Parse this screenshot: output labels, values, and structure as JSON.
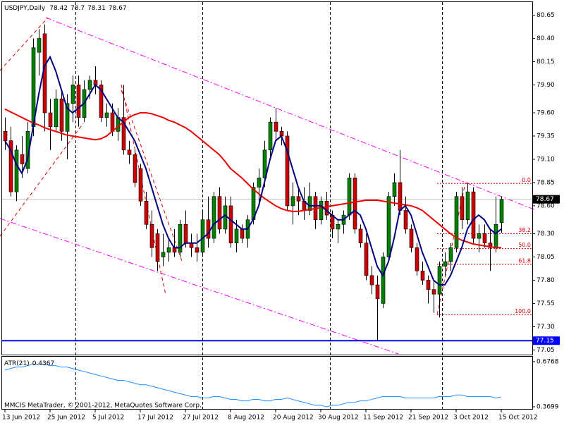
{
  "chart_data": [
    {
      "type": "candlestick",
      "title": "USDJPY,Daily",
      "categories": [
        "13 Jun 2012",
        null,
        null,
        null,
        null,
        null,
        null,
        null,
        "25 Jun 2012",
        null,
        null,
        null,
        null,
        null,
        null,
        null,
        "5 Jul 2012",
        null,
        null,
        null,
        null,
        null,
        null,
        null,
        "17 Jul 2012",
        null,
        null,
        null,
        null,
        null,
        null,
        null,
        "27 Jul 2012",
        null,
        null,
        null,
        null,
        null,
        null,
        null,
        "8 Aug 2012",
        null,
        null,
        null,
        null,
        null,
        null,
        null,
        "20 Aug 2012",
        null,
        null,
        null,
        null,
        null,
        null,
        null,
        "30 Aug 2012",
        null,
        null,
        null,
        null,
        null,
        null,
        null,
        "11 Sep 2012",
        null,
        null,
        null,
        null,
        null,
        null,
        null,
        "21 Sep 2012",
        null,
        null,
        null,
        null,
        null,
        null,
        null,
        "3 Oct 2012",
        null,
        null,
        null,
        null,
        null,
        null,
        null,
        "15 Oct 2012"
      ],
      "open": [
        79.4,
        79.3,
        78.75,
        79.15,
        79.0,
        79.45,
        80.25,
        80.45,
        79.6,
        79.45,
        79.75,
        79.4,
        79.7,
        79.9,
        79.55,
        79.85,
        79.95,
        79.9,
        79.55,
        79.6,
        79.4,
        79.55,
        79.2,
        79.15,
        79.0,
        78.65,
        78.4,
        78.3,
        78.05,
        78.1,
        78.15,
        78.1,
        78.4,
        78.2,
        78.15,
        78.1,
        78.45,
        78.25,
        78.7,
        78.35,
        78.6,
        78.2,
        78.35,
        78.25,
        78.45,
        78.8,
        78.9,
        79.2,
        79.5,
        79.4,
        79.35,
        78.6,
        78.7,
        78.65,
        78.55,
        78.7,
        78.45,
        78.65,
        78.5,
        78.35,
        78.4,
        78.5,
        78.9,
        78.35,
        78.2,
        77.85,
        77.75,
        77.55,
        78.05,
        78.7,
        78.85,
        78.55,
        78.35,
        78.15,
        77.9,
        77.8,
        77.7,
        77.65,
        77.95,
        78.0,
        78.15,
        78.7,
        78.45,
        78.75,
        78.25,
        78.3,
        78.2,
        78.15,
        78.42
      ],
      "high": [
        79.55,
        79.45,
        79.25,
        79.35,
        79.5,
        80.4,
        80.5,
        80.55,
        79.75,
        79.85,
        79.85,
        79.8,
        80.0,
        80.0,
        79.95,
        80.0,
        80.1,
        79.95,
        79.7,
        79.7,
        79.65,
        79.9,
        79.3,
        79.2,
        79.05,
        78.75,
        78.55,
        78.35,
        78.3,
        78.25,
        78.35,
        78.45,
        78.55,
        78.3,
        78.3,
        78.55,
        78.7,
        78.75,
        78.8,
        78.7,
        78.7,
        78.45,
        78.4,
        78.5,
        78.85,
        79.0,
        79.3,
        79.55,
        79.65,
        79.45,
        79.4,
        78.85,
        78.8,
        78.8,
        78.85,
        78.75,
        78.7,
        78.75,
        78.55,
        78.45,
        78.55,
        78.95,
        78.95,
        78.4,
        78.3,
        77.95,
        77.85,
        78.1,
        78.75,
        78.95,
        79.2,
        78.7,
        78.4,
        78.2,
        78.0,
        77.85,
        77.8,
        78.0,
        78.1,
        78.2,
        78.75,
        78.8,
        78.85,
        78.8,
        78.4,
        78.4,
        78.35,
        78.7,
        78.7
      ],
      "low": [
        79.2,
        78.7,
        78.65,
        78.9,
        78.95,
        79.35,
        80.0,
        79.4,
        79.2,
        79.4,
        79.3,
        79.1,
        79.5,
        79.45,
        79.5,
        79.75,
        79.8,
        79.5,
        79.45,
        79.35,
        79.3,
        79.15,
        79.05,
        78.8,
        78.6,
        78.35,
        78.05,
        77.9,
        77.95,
        78.0,
        78.05,
        78.05,
        78.15,
        78.05,
        78.0,
        78.05,
        78.15,
        78.2,
        78.3,
        78.3,
        78.15,
        78.1,
        78.2,
        78.15,
        78.4,
        78.6,
        78.8,
        79.1,
        79.3,
        79.25,
        78.55,
        78.4,
        78.5,
        78.45,
        78.5,
        78.35,
        78.4,
        78.45,
        78.25,
        78.2,
        78.3,
        78.45,
        78.3,
        78.15,
        77.8,
        77.65,
        77.15,
        77.5,
        78.0,
        78.6,
        78.5,
        78.3,
        78.1,
        77.85,
        77.75,
        77.55,
        77.45,
        77.4,
        77.85,
        77.9,
        78.1,
        78.35,
        78.4,
        78.2,
        78.1,
        78.15,
        77.9,
        78.1,
        78.31
      ],
      "close": [
        79.3,
        78.75,
        79.2,
        79.05,
        79.4,
        80.3,
        80.4,
        79.6,
        79.45,
        79.75,
        79.4,
        79.7,
        79.9,
        79.55,
        79.85,
        79.95,
        79.9,
        79.55,
        79.6,
        79.4,
        79.55,
        79.2,
        79.15,
        78.85,
        78.65,
        78.4,
        78.15,
        78.0,
        78.1,
        78.15,
        78.1,
        78.4,
        78.2,
        78.15,
        78.1,
        78.45,
        78.25,
        78.7,
        78.35,
        78.6,
        78.2,
        78.35,
        78.25,
        78.45,
        78.8,
        78.9,
        79.2,
        79.5,
        79.4,
        79.35,
        78.6,
        78.7,
        78.65,
        78.55,
        78.7,
        78.45,
        78.65,
        78.5,
        78.35,
        78.4,
        78.5,
        78.9,
        78.35,
        78.2,
        77.85,
        77.75,
        77.6,
        78.05,
        78.7,
        78.85,
        78.55,
        78.35,
        78.15,
        77.9,
        77.8,
        77.7,
        77.65,
        77.95,
        78.0,
        78.15,
        78.7,
        78.45,
        78.75,
        78.25,
        78.3,
        78.2,
        78.15,
        78.4,
        78.67
      ],
      "up_color": "#008000",
      "down_color": "#cc0000",
      "lines": [
        {
          "color": "#ee0000",
          "values": [
            79.64,
            79.61,
            79.58,
            79.55,
            79.52,
            79.49,
            79.47,
            79.44,
            79.42,
            79.4,
            79.38,
            79.36,
            79.35,
            79.34,
            79.33,
            79.32,
            79.31,
            79.32,
            79.35,
            79.4,
            79.45,
            79.5,
            79.55,
            79.58,
            79.6,
            79.6,
            79.59,
            79.57,
            79.55,
            79.52,
            79.5,
            79.47,
            79.44,
            79.4,
            79.35,
            79.3,
            79.25,
            79.2,
            79.15,
            79.08,
            79.0,
            78.95,
            78.9,
            78.84,
            78.78,
            78.73,
            78.68,
            78.64,
            78.6,
            78.57,
            78.55,
            78.54,
            78.54,
            78.55,
            78.56,
            78.57,
            78.58,
            78.59,
            78.6,
            78.61,
            78.62,
            78.63,
            78.64,
            78.65,
            78.66,
            78.66,
            78.66,
            78.65,
            78.64,
            78.63,
            78.62,
            78.61,
            78.6,
            78.58,
            78.55,
            78.5,
            78.45,
            78.4,
            78.35,
            78.3,
            78.26,
            78.23,
            78.21,
            78.19,
            78.18,
            78.17,
            78.16,
            78.15,
            78.15
          ]
        },
        {
          "color": "#000080",
          "values": [
            79.3,
            79.2,
            79.05,
            78.95,
            79.1,
            79.45,
            79.8,
            80.1,
            80.2,
            80.05,
            79.85,
            79.65,
            79.6,
            79.65,
            79.7,
            79.8,
            79.9,
            79.85,
            79.75,
            79.65,
            79.55,
            79.5,
            79.4,
            79.3,
            79.15,
            79.0,
            78.8,
            78.6,
            78.4,
            78.25,
            78.15,
            78.15,
            78.2,
            78.2,
            78.2,
            78.25,
            78.3,
            78.4,
            78.45,
            78.5,
            78.45,
            78.4,
            78.35,
            78.35,
            78.45,
            78.6,
            78.85,
            79.1,
            79.3,
            79.35,
            79.2,
            79.0,
            78.8,
            78.65,
            78.6,
            78.6,
            78.6,
            78.55,
            78.5,
            78.45,
            78.45,
            78.5,
            78.55,
            78.5,
            78.35,
            78.15,
            77.95,
            77.85,
            78.0,
            78.25,
            78.55,
            78.6,
            78.5,
            78.3,
            78.1,
            77.95,
            77.8,
            77.75,
            77.75,
            77.85,
            78.0,
            78.15,
            78.35,
            78.45,
            78.5,
            78.45,
            78.35,
            78.3,
            78.35
          ]
        }
      ],
      "hlines": [
        {
          "value": 77.15,
          "color": "#0000ff"
        }
      ],
      "fibonacci": {
        "color": "#dd0000",
        "levels": [
          {
            "label": "0.0",
            "value": 78.84
          },
          {
            "label": "38.2",
            "value": 78.3
          },
          {
            "label": "50.0",
            "value": 78.14
          },
          {
            "label": "61.8",
            "value": 77.97
          },
          {
            "label": "100.0",
            "value": 77.43
          }
        ]
      },
      "ylim": [
        77.0,
        80.79
      ],
      "yticks": [
        80.65,
        {
          "value": 80.4,
          "label": "80.40"
        },
        80.15,
        {
          "value": 79.9,
          "label": "79.90"
        },
        {
          "value": 79.6,
          "label": "79.60"
        },
        79.35,
        {
          "value": 79.1,
          "label": "79.10"
        },
        78.85,
        {
          "value": 78.6,
          "label": "78.60"
        },
        {
          "value": 78.3,
          "label": "78.30"
        },
        78.05,
        {
          "value": 77.8,
          "label": "77.80"
        },
        77.55,
        {
          "value": 77.3,
          "label": "77.30"
        },
        77.05
      ]
    },
    {
      "type": "line",
      "title": "ATR(21)",
      "color": "#1e90ff",
      "values": [
        0.62,
        0.63,
        0.64,
        0.64,
        0.65,
        0.66,
        0.66,
        0.66,
        0.65,
        0.65,
        0.64,
        0.64,
        0.63,
        0.62,
        0.61,
        0.6,
        0.59,
        0.58,
        0.57,
        0.56,
        0.55,
        0.55,
        0.54,
        0.53,
        0.52,
        0.52,
        0.51,
        0.5,
        0.49,
        0.48,
        0.47,
        0.46,
        0.45,
        0.44,
        0.44,
        0.43,
        0.43,
        0.44,
        0.44,
        0.43,
        0.42,
        0.42,
        0.41,
        0.41,
        0.42,
        0.42,
        0.41,
        0.41,
        0.42,
        0.42,
        0.43,
        0.42,
        0.41,
        0.4,
        0.39,
        0.38,
        0.38,
        0.37,
        0.38,
        0.38,
        0.39,
        0.4,
        0.4,
        0.41,
        0.41,
        0.42,
        0.43,
        0.44,
        0.44,
        0.44,
        0.44,
        0.43,
        0.43,
        0.43,
        0.43,
        0.43,
        0.43,
        0.44,
        0.44,
        0.44,
        0.45,
        0.45,
        0.44,
        0.44,
        0.44,
        0.44,
        0.44,
        0.43,
        0.4367
      ],
      "ylim": [
        0.3699,
        0.6768
      ],
      "yticks": [
        0.6768,
        0.3699
      ],
      "footer": "MMCIS MetaTrader, © 2001-2012, MetaQuotes Software Corp."
    }
  ]
}
